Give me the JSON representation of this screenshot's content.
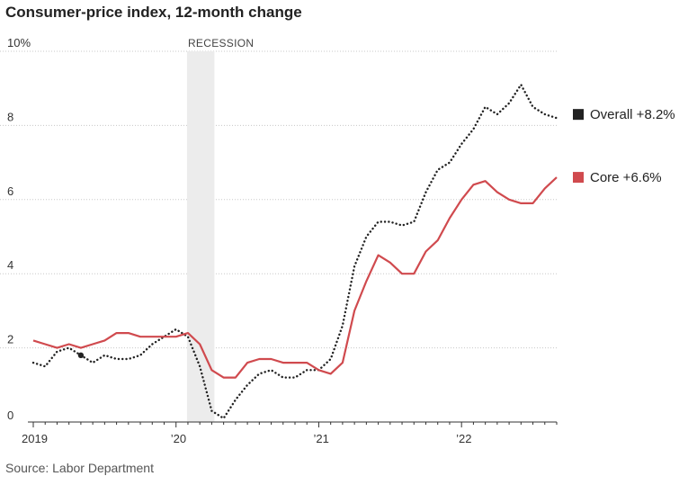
{
  "title": "Consumer-price index, 12-month change",
  "source": "Source: Labor Department",
  "chart_data": {
    "type": "line",
    "title": "Consumer-price index, 12-month change",
    "xlabel": "",
    "ylabel": "",
    "ylim": [
      0,
      10
    ],
    "y_ticks": [
      0,
      2,
      4,
      6,
      8,
      10
    ],
    "y_tick_labels": [
      "0",
      "2",
      "4",
      "6",
      "8",
      "10%"
    ],
    "x_range": [
      "2019-01",
      "2022-09"
    ],
    "x_ticks": [
      "2019-01",
      "2020-01",
      "2021-01",
      "2022-01"
    ],
    "x_tick_labels": [
      "2019",
      "’20",
      "’21",
      "’22"
    ],
    "grid": "horizontal dotted",
    "annotation": {
      "label": "RECESSION",
      "start": "2020-02",
      "end": "2020-04"
    },
    "x": [
      "2019-01",
      "2019-02",
      "2019-03",
      "2019-04",
      "2019-05",
      "2019-06",
      "2019-07",
      "2019-08",
      "2019-09",
      "2019-10",
      "2019-11",
      "2019-12",
      "2020-01",
      "2020-02",
      "2020-03",
      "2020-04",
      "2020-05",
      "2020-06",
      "2020-07",
      "2020-08",
      "2020-09",
      "2020-10",
      "2020-11",
      "2020-12",
      "2021-01",
      "2021-02",
      "2021-03",
      "2021-04",
      "2021-05",
      "2021-06",
      "2021-07",
      "2021-08",
      "2021-09",
      "2021-10",
      "2021-11",
      "2021-12",
      "2022-01",
      "2022-02",
      "2022-03",
      "2022-04",
      "2022-05",
      "2022-06",
      "2022-07",
      "2022-08",
      "2022-09"
    ],
    "series": [
      {
        "name": "Overall",
        "legend_label": "Overall +8.2%",
        "color": "#222222",
        "style": "dotted",
        "values": [
          1.6,
          1.5,
          1.9,
          2.0,
          1.8,
          1.6,
          1.8,
          1.7,
          1.7,
          1.8,
          2.1,
          2.3,
          2.5,
          2.3,
          1.5,
          0.3,
          0.1,
          0.6,
          1.0,
          1.3,
          1.4,
          1.2,
          1.2,
          1.4,
          1.4,
          1.7,
          2.6,
          4.2,
          5.0,
          5.4,
          5.4,
          5.3,
          5.4,
          6.2,
          6.8,
          7.0,
          7.5,
          7.9,
          8.5,
          8.3,
          8.6,
          9.1,
          8.5,
          8.3,
          8.2
        ]
      },
      {
        "name": "Core",
        "legend_label": "Core +6.6%",
        "color": "#d04a4e",
        "style": "solid",
        "values": [
          2.2,
          2.1,
          2.0,
          2.1,
          2.0,
          2.1,
          2.2,
          2.4,
          2.4,
          2.3,
          2.3,
          2.3,
          2.3,
          2.4,
          2.1,
          1.4,
          1.2,
          1.2,
          1.6,
          1.7,
          1.7,
          1.6,
          1.6,
          1.6,
          1.4,
          1.3,
          1.6,
          3.0,
          3.8,
          4.5,
          4.3,
          4.0,
          4.0,
          4.6,
          4.9,
          5.5,
          6.0,
          6.4,
          6.5,
          6.2,
          6.0,
          5.9,
          5.9,
          6.3,
          6.6
        ]
      }
    ]
  }
}
